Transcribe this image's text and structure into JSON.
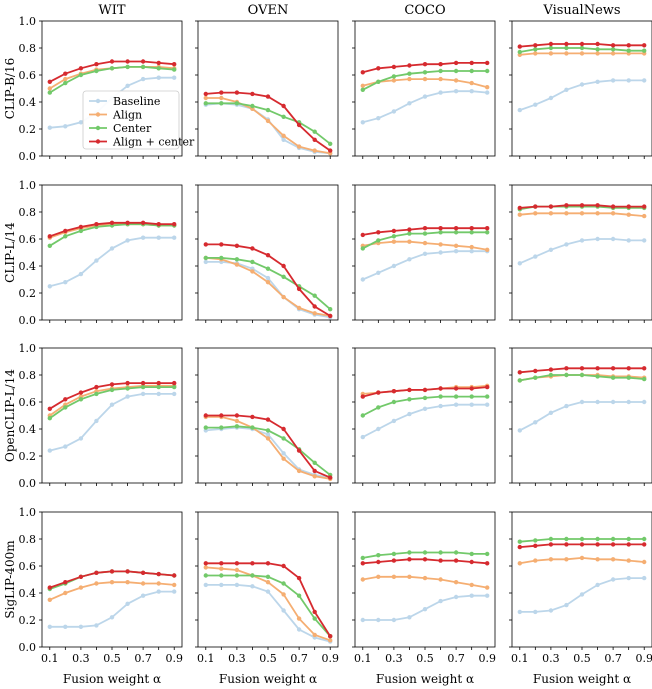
{
  "chart_data": {
    "type": "line",
    "x": [
      0.1,
      0.2,
      0.3,
      0.4,
      0.5,
      0.6,
      0.7,
      0.8,
      0.9
    ],
    "xlabel": "Fusion weight α",
    "ylim": [
      0.0,
      1.0
    ],
    "y_ticks": [
      "0.0",
      "0.2",
      "0.4",
      "0.6",
      "0.8",
      "1.0"
    ],
    "x_ticks": [
      "0.1",
      "0.3",
      "0.5",
      "0.7",
      "0.9"
    ],
    "columns": [
      "WIT",
      "OVEN",
      "COCO",
      "VisualNews"
    ],
    "rows": [
      "CLIP-B/16",
      "CLIP-L/14",
      "OpenCLIP-L/14",
      "SigLIP-400m"
    ],
    "legend": [
      "Baseline",
      "Align",
      "Center",
      "Align + center"
    ],
    "colors": {
      "Baseline": "#bcd6ea",
      "Align": "#f5ae72",
      "Center": "#72c96a",
      "Align + center": "#d62a2f"
    },
    "panels": [
      [
        {
          "Baseline": [
            0.21,
            0.22,
            0.25,
            0.32,
            0.43,
            0.52,
            0.57,
            0.58,
            0.58
          ],
          "Align": [
            0.5,
            0.57,
            0.61,
            0.64,
            0.65,
            0.66,
            0.66,
            0.66,
            0.65
          ],
          "Center": [
            0.47,
            0.54,
            0.6,
            0.63,
            0.65,
            0.66,
            0.66,
            0.65,
            0.64
          ],
          "Align + center": [
            0.55,
            0.61,
            0.65,
            0.68,
            0.7,
            0.7,
            0.7,
            0.69,
            0.68
          ]
        },
        {
          "Baseline": [
            0.38,
            0.39,
            0.38,
            0.35,
            0.27,
            0.12,
            0.06,
            0.03,
            0.02
          ],
          "Align": [
            0.43,
            0.43,
            0.4,
            0.35,
            0.26,
            0.15,
            0.07,
            0.04,
            0.02
          ],
          "Center": [
            0.39,
            0.39,
            0.39,
            0.37,
            0.34,
            0.29,
            0.25,
            0.18,
            0.09
          ],
          "Align + center": [
            0.46,
            0.47,
            0.47,
            0.46,
            0.44,
            0.37,
            0.23,
            0.12,
            0.04
          ]
        },
        {
          "Baseline": [
            0.25,
            0.28,
            0.33,
            0.39,
            0.44,
            0.47,
            0.48,
            0.48,
            0.47
          ],
          "Align": [
            0.52,
            0.55,
            0.56,
            0.57,
            0.57,
            0.57,
            0.56,
            0.54,
            0.51
          ],
          "Center": [
            0.49,
            0.55,
            0.59,
            0.61,
            0.62,
            0.63,
            0.63,
            0.63,
            0.63
          ],
          "Align + center": [
            0.62,
            0.65,
            0.66,
            0.67,
            0.68,
            0.68,
            0.69,
            0.69,
            0.69
          ]
        },
        {
          "Baseline": [
            0.34,
            0.38,
            0.43,
            0.49,
            0.53,
            0.55,
            0.56,
            0.56,
            0.56
          ],
          "Align": [
            0.75,
            0.76,
            0.76,
            0.76,
            0.76,
            0.76,
            0.76,
            0.76,
            0.76
          ],
          "Center": [
            0.77,
            0.79,
            0.8,
            0.8,
            0.8,
            0.79,
            0.79,
            0.78,
            0.78
          ],
          "Align + center": [
            0.81,
            0.82,
            0.83,
            0.83,
            0.83,
            0.83,
            0.82,
            0.82,
            0.82
          ]
        }
      ],
      [
        {
          "Baseline": [
            0.25,
            0.28,
            0.34,
            0.44,
            0.53,
            0.59,
            0.61,
            0.61,
            0.61
          ],
          "Align": [
            0.61,
            0.65,
            0.68,
            0.7,
            0.71,
            0.71,
            0.71,
            0.7,
            0.7
          ],
          "Center": [
            0.55,
            0.62,
            0.66,
            0.69,
            0.7,
            0.71,
            0.71,
            0.7,
            0.7
          ],
          "Align + center": [
            0.62,
            0.66,
            0.69,
            0.71,
            0.72,
            0.72,
            0.72,
            0.71,
            0.71
          ]
        },
        {
          "Baseline": [
            0.43,
            0.43,
            0.42,
            0.38,
            0.31,
            0.17,
            0.08,
            0.04,
            0.02
          ],
          "Align": [
            0.46,
            0.45,
            0.41,
            0.36,
            0.28,
            0.17,
            0.09,
            0.05,
            0.03
          ],
          "Center": [
            0.46,
            0.46,
            0.45,
            0.43,
            0.38,
            0.32,
            0.25,
            0.18,
            0.08
          ],
          "Align + center": [
            0.56,
            0.56,
            0.55,
            0.53,
            0.48,
            0.4,
            0.23,
            0.1,
            0.03
          ]
        },
        {
          "Baseline": [
            0.3,
            0.35,
            0.4,
            0.45,
            0.49,
            0.5,
            0.51,
            0.51,
            0.51
          ],
          "Align": [
            0.55,
            0.57,
            0.58,
            0.58,
            0.57,
            0.56,
            0.55,
            0.54,
            0.52
          ],
          "Center": [
            0.53,
            0.59,
            0.62,
            0.64,
            0.64,
            0.65,
            0.65,
            0.65,
            0.65
          ],
          "Align + center": [
            0.63,
            0.65,
            0.66,
            0.67,
            0.68,
            0.68,
            0.68,
            0.68,
            0.68
          ]
        },
        {
          "Baseline": [
            0.42,
            0.47,
            0.52,
            0.56,
            0.59,
            0.6,
            0.6,
            0.59,
            0.59
          ],
          "Align": [
            0.78,
            0.79,
            0.79,
            0.79,
            0.79,
            0.79,
            0.79,
            0.78,
            0.77
          ],
          "Center": [
            0.82,
            0.84,
            0.84,
            0.84,
            0.84,
            0.84,
            0.83,
            0.83,
            0.83
          ],
          "Align + center": [
            0.83,
            0.84,
            0.84,
            0.85,
            0.85,
            0.85,
            0.84,
            0.84,
            0.84
          ]
        }
      ],
      [
        {
          "Baseline": [
            0.24,
            0.27,
            0.33,
            0.46,
            0.58,
            0.64,
            0.66,
            0.66,
            0.66
          ],
          "Align": [
            0.5,
            0.58,
            0.64,
            0.68,
            0.7,
            0.71,
            0.72,
            0.72,
            0.72
          ],
          "Center": [
            0.48,
            0.56,
            0.62,
            0.66,
            0.69,
            0.7,
            0.71,
            0.71,
            0.71
          ],
          "Align + center": [
            0.55,
            0.62,
            0.67,
            0.71,
            0.73,
            0.74,
            0.74,
            0.74,
            0.74
          ]
        },
        {
          "Baseline": [
            0.39,
            0.4,
            0.41,
            0.4,
            0.36,
            0.22,
            0.1,
            0.06,
            0.04
          ],
          "Align": [
            0.49,
            0.49,
            0.46,
            0.41,
            0.33,
            0.18,
            0.09,
            0.05,
            0.03
          ],
          "Center": [
            0.41,
            0.41,
            0.42,
            0.41,
            0.39,
            0.33,
            0.25,
            0.15,
            0.06
          ],
          "Align + center": [
            0.5,
            0.5,
            0.5,
            0.49,
            0.47,
            0.4,
            0.24,
            0.09,
            0.04
          ]
        },
        {
          "Baseline": [
            0.34,
            0.4,
            0.46,
            0.51,
            0.55,
            0.57,
            0.58,
            0.58,
            0.58
          ],
          "Align": [
            0.66,
            0.67,
            0.68,
            0.69,
            0.69,
            0.7,
            0.71,
            0.71,
            0.72
          ],
          "Center": [
            0.5,
            0.56,
            0.6,
            0.62,
            0.63,
            0.64,
            0.64,
            0.64,
            0.64
          ],
          "Align + center": [
            0.64,
            0.67,
            0.68,
            0.69,
            0.69,
            0.7,
            0.7,
            0.7,
            0.71
          ]
        },
        {
          "Baseline": [
            0.39,
            0.45,
            0.52,
            0.57,
            0.6,
            0.6,
            0.6,
            0.6,
            0.6
          ],
          "Align": [
            0.76,
            0.78,
            0.79,
            0.8,
            0.8,
            0.8,
            0.79,
            0.79,
            0.78
          ],
          "Center": [
            0.76,
            0.78,
            0.8,
            0.8,
            0.8,
            0.79,
            0.78,
            0.78,
            0.77
          ],
          "Align + center": [
            0.82,
            0.83,
            0.84,
            0.85,
            0.85,
            0.85,
            0.85,
            0.85,
            0.85
          ]
        }
      ],
      [
        {
          "Baseline": [
            0.15,
            0.15,
            0.15,
            0.16,
            0.22,
            0.32,
            0.38,
            0.41,
            0.41
          ],
          "Align": [
            0.35,
            0.4,
            0.44,
            0.47,
            0.48,
            0.48,
            0.47,
            0.47,
            0.46
          ],
          "Center": [
            0.43,
            0.47,
            0.52,
            0.55,
            0.56,
            0.56,
            0.55,
            0.54,
            0.53
          ],
          "Align + center": [
            0.44,
            0.48,
            0.52,
            0.55,
            0.56,
            0.56,
            0.55,
            0.54,
            0.53
          ]
        },
        {
          "Baseline": [
            0.46,
            0.46,
            0.46,
            0.45,
            0.41,
            0.27,
            0.13,
            0.07,
            0.04
          ],
          "Align": [
            0.59,
            0.58,
            0.57,
            0.53,
            0.48,
            0.39,
            0.21,
            0.09,
            0.05
          ],
          "Center": [
            0.53,
            0.53,
            0.53,
            0.53,
            0.52,
            0.47,
            0.38,
            0.21,
            0.08
          ],
          "Align + center": [
            0.62,
            0.62,
            0.62,
            0.62,
            0.62,
            0.6,
            0.51,
            0.26,
            0.08
          ]
        },
        {
          "Baseline": [
            0.2,
            0.2,
            0.2,
            0.22,
            0.28,
            0.34,
            0.37,
            0.38,
            0.38
          ],
          "Align": [
            0.5,
            0.52,
            0.52,
            0.52,
            0.51,
            0.5,
            0.48,
            0.46,
            0.44
          ],
          "Center": [
            0.66,
            0.68,
            0.69,
            0.7,
            0.7,
            0.7,
            0.7,
            0.69,
            0.69
          ],
          "Align + center": [
            0.62,
            0.63,
            0.64,
            0.65,
            0.65,
            0.64,
            0.64,
            0.63,
            0.62
          ]
        },
        {
          "Baseline": [
            0.26,
            0.26,
            0.27,
            0.31,
            0.39,
            0.46,
            0.5,
            0.51,
            0.51
          ],
          "Align": [
            0.62,
            0.64,
            0.65,
            0.65,
            0.66,
            0.65,
            0.65,
            0.64,
            0.63
          ],
          "Center": [
            0.78,
            0.79,
            0.8,
            0.8,
            0.8,
            0.8,
            0.8,
            0.8,
            0.8
          ],
          "Align + center": [
            0.74,
            0.75,
            0.76,
            0.76,
            0.76,
            0.76,
            0.76,
            0.76,
            0.76
          ]
        }
      ]
    ]
  }
}
